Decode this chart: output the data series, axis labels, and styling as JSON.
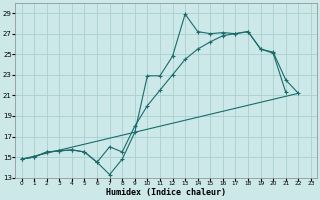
{
  "xlabel": "Humidex (Indice chaleur)",
  "bg_color": "#cce8e8",
  "grid_color": "#aad0ce",
  "line_color": "#1a6b6b",
  "xlim": [
    -0.5,
    23.5
  ],
  "ylim": [
    13,
    30
  ],
  "yticks": [
    13,
    15,
    17,
    19,
    21,
    23,
    25,
    27,
    29
  ],
  "xticks": [
    0,
    1,
    2,
    3,
    4,
    5,
    6,
    7,
    8,
    9,
    10,
    11,
    12,
    13,
    14,
    15,
    16,
    17,
    18,
    19,
    20,
    21,
    22,
    23
  ],
  "line1_x": [
    0,
    1,
    2,
    3,
    4,
    5,
    6,
    7,
    8,
    9,
    10,
    11,
    12,
    13,
    14,
    15,
    16,
    17,
    18,
    19,
    20,
    21
  ],
  "line1_y": [
    14.8,
    15.0,
    15.5,
    15.6,
    15.7,
    15.5,
    14.5,
    13.3,
    14.8,
    17.4,
    22.9,
    22.9,
    24.8,
    28.9,
    27.2,
    27.0,
    27.1,
    27.0,
    27.2,
    25.5,
    25.1,
    21.3
  ],
  "line2_x": [
    0,
    1,
    2,
    3,
    4,
    5,
    6,
    7,
    8,
    9,
    10,
    11,
    12,
    13,
    14,
    15,
    16,
    17,
    18,
    19,
    20,
    21,
    22
  ],
  "line2_y": [
    14.8,
    15.0,
    15.5,
    15.6,
    15.7,
    15.5,
    14.5,
    16.0,
    15.5,
    18.0,
    20.0,
    21.5,
    23.0,
    24.5,
    25.5,
    26.2,
    26.8,
    27.0,
    27.2,
    25.5,
    25.2,
    22.5,
    21.2
  ],
  "line3_x": [
    0,
    22
  ],
  "line3_y": [
    14.8,
    21.2
  ]
}
